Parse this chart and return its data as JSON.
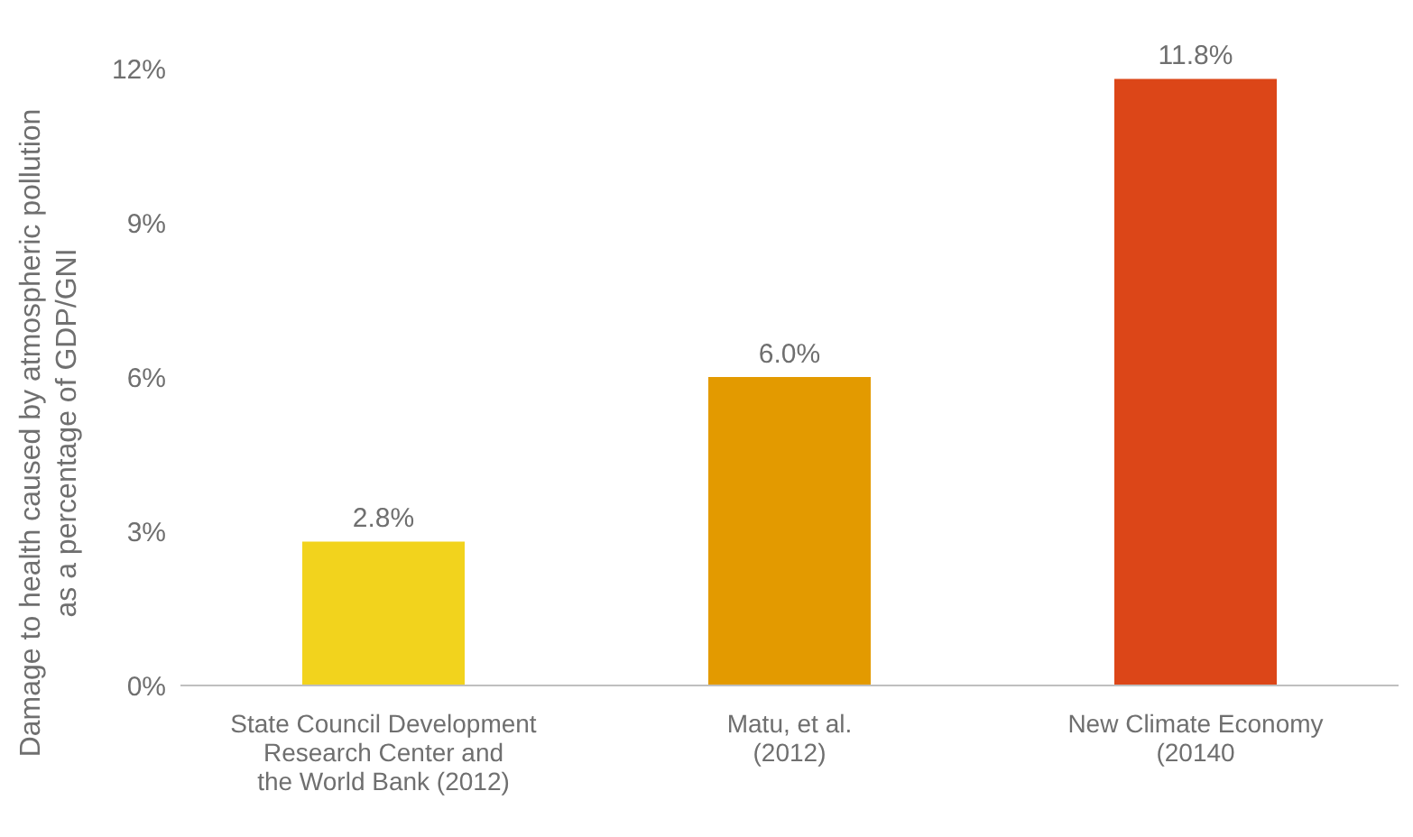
{
  "chart_data": {
    "type": "bar",
    "ylabel": "Damage to health caused by atmospheric pollution\nas a percentage of GDP/GNI",
    "categories": [
      "State Council Development\nResearch Center and\nthe World Bank (2012)",
      "Matu, et al.\n(2012)",
      "New Climate Economy\n(20140"
    ],
    "values": [
      2.8,
      6.0,
      11.8
    ],
    "colors": [
      "#f2d31d",
      "#e39a00",
      "#dc4618"
    ],
    "value_labels": [
      "2.8%",
      "6.0%",
      "11.8%"
    ],
    "ylim": [
      0,
      12
    ],
    "yticks": [
      {
        "value": 0,
        "label": "0%"
      },
      {
        "value": 3,
        "label": "3%"
      },
      {
        "value": 6,
        "label": "6%"
      },
      {
        "value": 9,
        "label": "9%"
      },
      {
        "value": 12,
        "label": "12%"
      }
    ],
    "grid": false,
    "legend": false
  }
}
